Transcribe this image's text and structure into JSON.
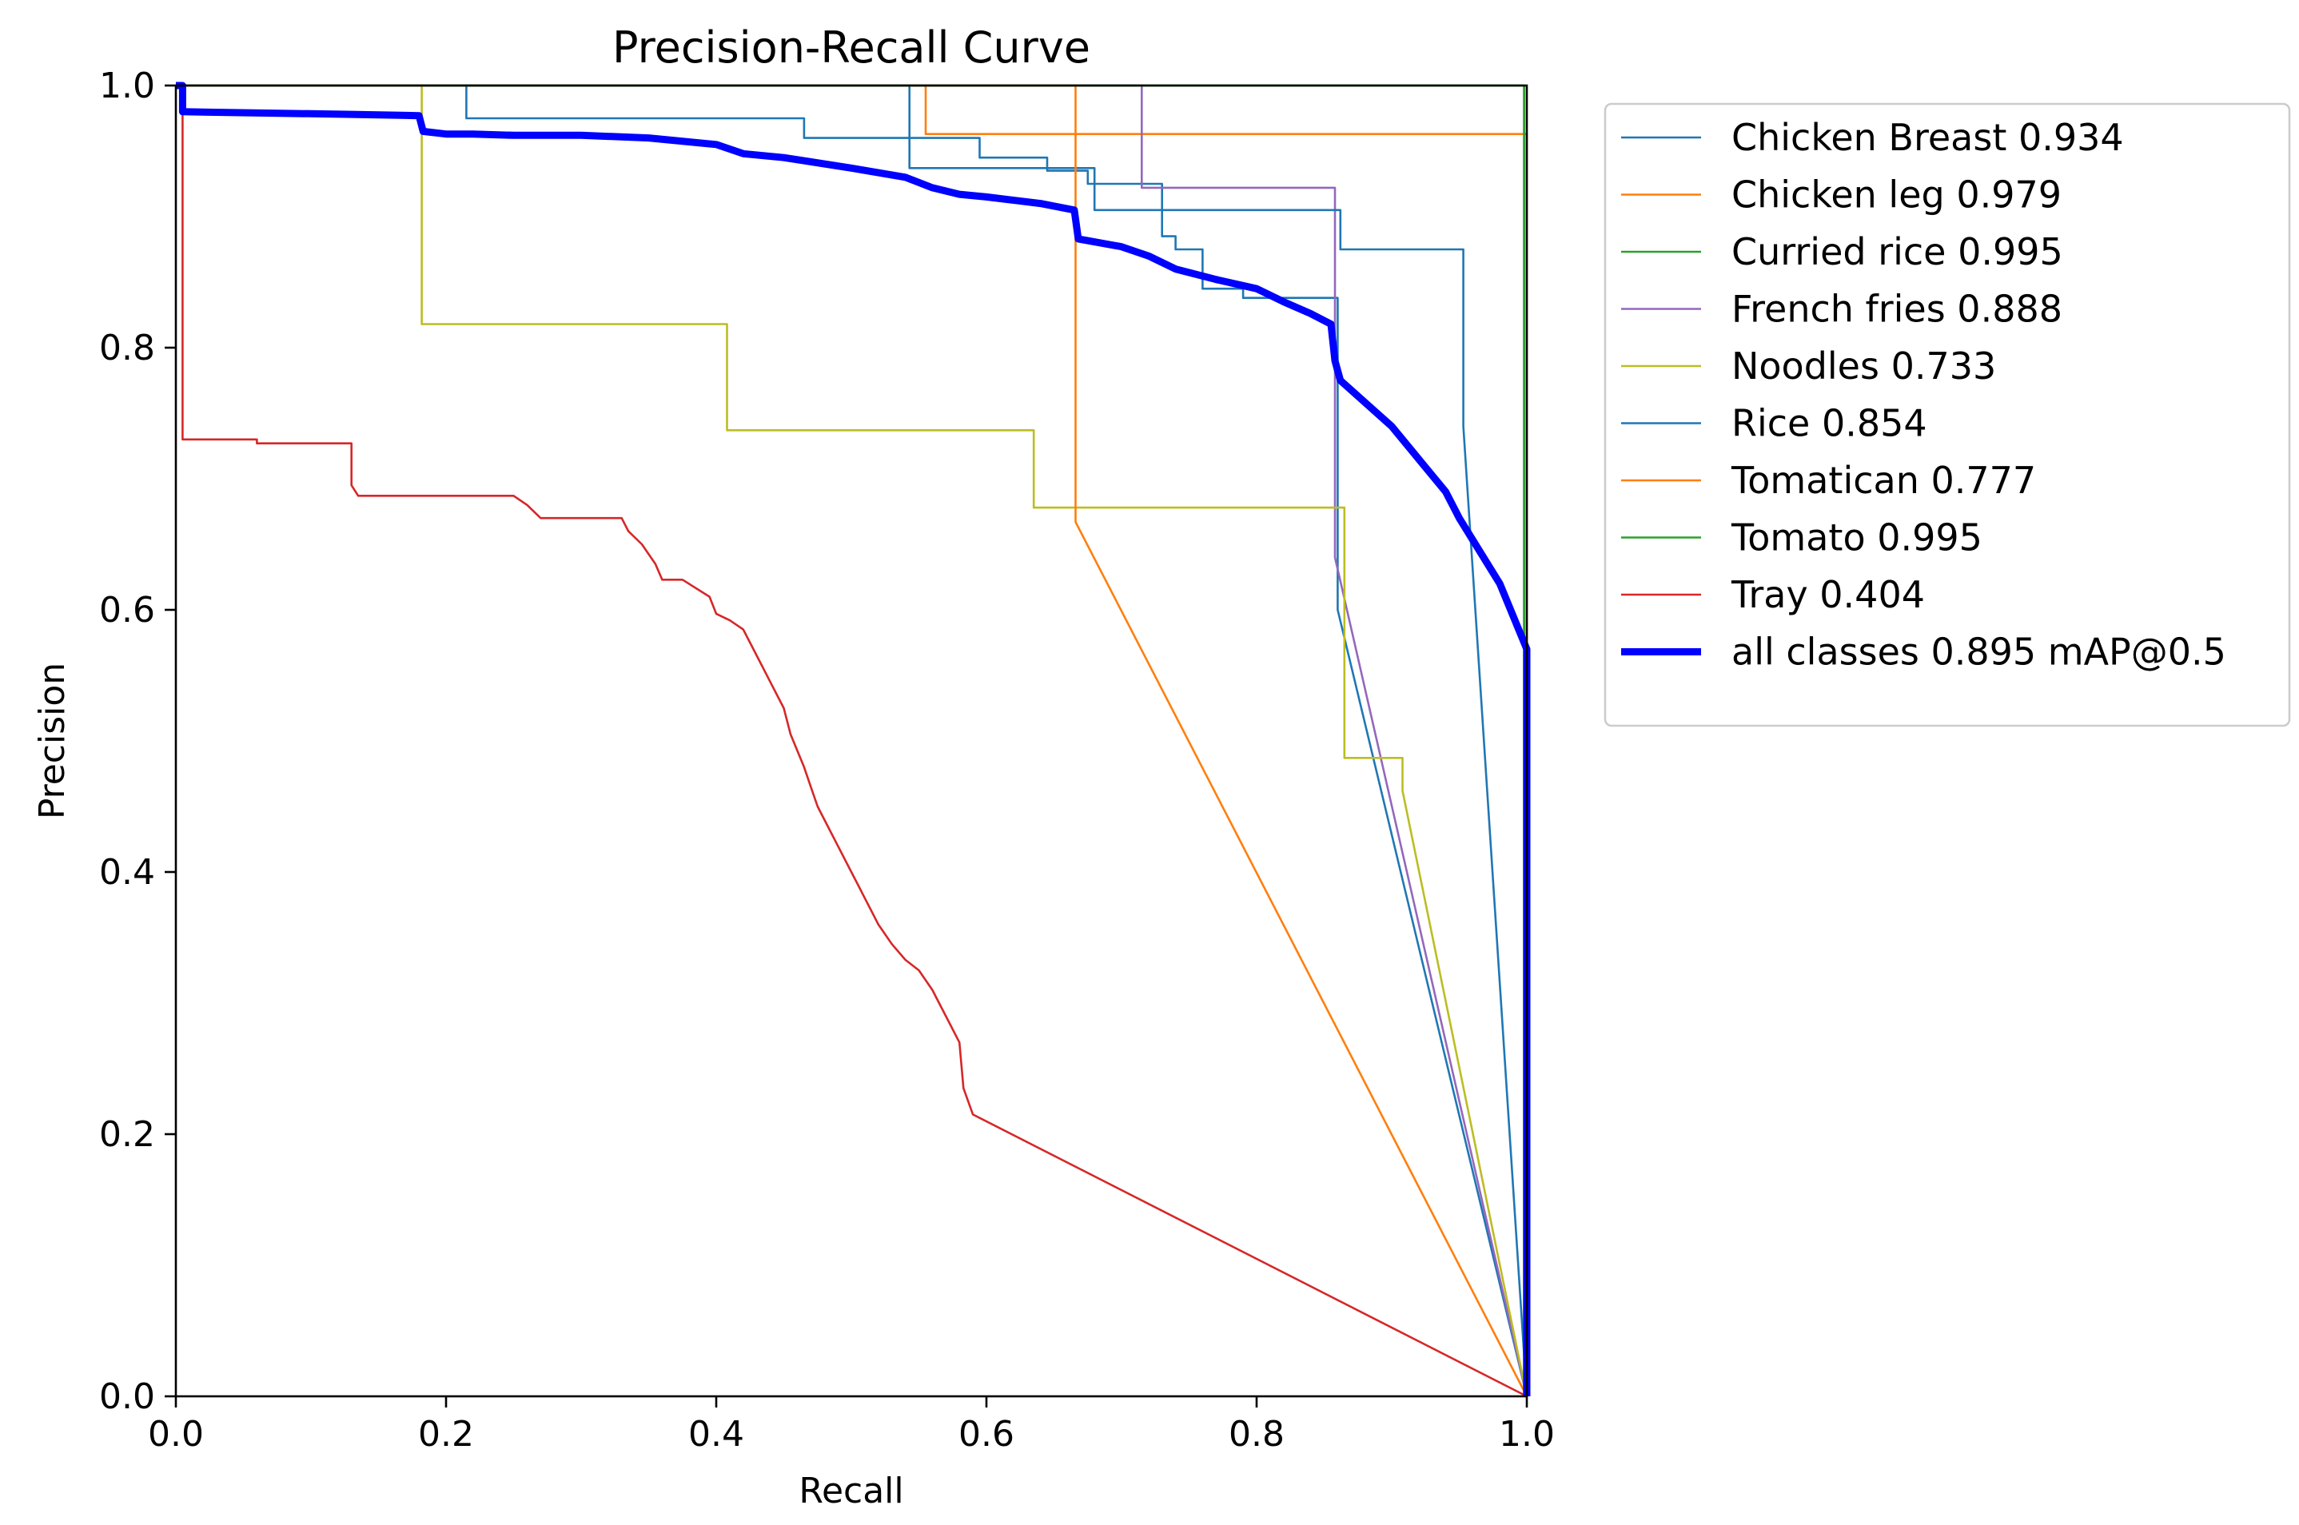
{
  "chart_data": {
    "type": "line",
    "title": "Precision-Recall Curve",
    "xlabel": "Recall",
    "ylabel": "Precision",
    "xlim": [
      0,
      1
    ],
    "ylim": [
      0,
      1
    ],
    "xticks": [
      "0.0",
      "0.2",
      "0.4",
      "0.6",
      "0.8",
      "1.0"
    ],
    "yticks": [
      "0.0",
      "0.2",
      "0.4",
      "0.6",
      "0.8",
      "1.0"
    ],
    "legend_position": "outside-right",
    "series": [
      {
        "name": "Chicken Breast 0.934",
        "color": "#1f77b4",
        "width": 2.6,
        "x": [
          0,
          0.215,
          0.215,
          0.465,
          0.465,
          0.595,
          0.595,
          0.645,
          0.645,
          0.675,
          0.675,
          0.73,
          0.73,
          0.74,
          0.74,
          0.76,
          0.76,
          0.79,
          0.79,
          0.86,
          0.86,
          1.0
        ],
        "y": [
          1.0,
          1.0,
          0.975,
          0.975,
          0.96,
          0.96,
          0.945,
          0.945,
          0.935,
          0.935,
          0.925,
          0.925,
          0.885,
          0.885,
          0.875,
          0.875,
          0.845,
          0.845,
          0.838,
          0.838,
          0.6,
          0
        ]
      },
      {
        "name": "Chicken leg 0.979",
        "color": "#ff7f0e",
        "width": 2.6,
        "x": [
          0,
          0.555,
          0.555,
          1.0,
          1.0
        ],
        "y": [
          1.0,
          1.0,
          0.963,
          0.963,
          0
        ]
      },
      {
        "name": "Curried rice 0.995",
        "color": "#2ca02c",
        "width": 2.6,
        "x": [
          0,
          0.998,
          0.998
        ],
        "y": [
          1.0,
          1.0,
          0
        ]
      },
      {
        "name": "French fries 0.888",
        "color": "#9467bd",
        "width": 2.6,
        "x": [
          0,
          0.715,
          0.715,
          0.858,
          0.858,
          1.0
        ],
        "y": [
          1.0,
          1.0,
          0.922,
          0.922,
          0.64,
          0
        ]
      },
      {
        "name": "Noodles 0.733",
        "color": "#bcbd22",
        "width": 2.6,
        "x": [
          0,
          0.182,
          0.182,
          0.408,
          0.408,
          0.635,
          0.635,
          0.865,
          0.865,
          0.908,
          0.908,
          1.0
        ],
        "y": [
          1.0,
          1.0,
          0.818,
          0.818,
          0.737,
          0.737,
          0.678,
          0.678,
          0.487,
          0.487,
          0.462,
          0
        ]
      },
      {
        "name": "Rice 0.854",
        "color": "#1f77b4",
        "width": 2.6,
        "x": [
          0,
          0.543,
          0.543,
          0.68,
          0.68,
          0.862,
          0.862,
          0.953,
          0.953,
          1.0
        ],
        "y": [
          1.0,
          1.0,
          0.937,
          0.937,
          0.905,
          0.905,
          0.875,
          0.875,
          0.74,
          0
        ]
      },
      {
        "name": "Tomatican 0.777",
        "color": "#ff7f0e",
        "width": 2.6,
        "x": [
          0,
          0.666,
          0.666,
          1.0
        ],
        "y": [
          1.0,
          1.0,
          0.667,
          0
        ]
      },
      {
        "name": "Tomato 0.995",
        "color": "#2ca02c",
        "width": 2.6,
        "x": [
          0,
          0.998,
          0.998
        ],
        "y": [
          1.0,
          1.0,
          0
        ]
      },
      {
        "name": "Tray 0.404",
        "color": "#d62728",
        "width": 2.6,
        "x": [
          0.005,
          0.005,
          0.06,
          0.06,
          0.13,
          0.13,
          0.135,
          0.135,
          0.25,
          0.26,
          0.27,
          0.3,
          0.33,
          0.335,
          0.345,
          0.355,
          0.36,
          0.375,
          0.395,
          0.4,
          0.41,
          0.42,
          0.43,
          0.44,
          0.45,
          0.455,
          0.465,
          0.47,
          0.475,
          0.48,
          0.49,
          0.5,
          0.505,
          0.51,
          0.52,
          0.53,
          0.54,
          0.55,
          0.56,
          0.565,
          0.57,
          0.58,
          0.583,
          0.59,
          1.0
        ],
        "y": [
          1.0,
          0.73,
          0.73,
          0.727,
          0.727,
          0.695,
          0.687,
          0.687,
          0.687,
          0.68,
          0.67,
          0.67,
          0.67,
          0.66,
          0.65,
          0.635,
          0.623,
          0.623,
          0.61,
          0.597,
          0.592,
          0.585,
          0.565,
          0.545,
          0.525,
          0.505,
          0.48,
          0.465,
          0.45,
          0.44,
          0.42,
          0.4,
          0.39,
          0.38,
          0.36,
          0.345,
          0.333,
          0.325,
          0.31,
          0.3,
          0.29,
          0.27,
          0.235,
          0.215,
          0
        ]
      },
      {
        "name": "all classes 0.895 mAP@0.5",
        "color": "#0000ff",
        "width": 9,
        "x": [
          0,
          0.005,
          0.005,
          0.13,
          0.18,
          0.183,
          0.2,
          0.22,
          0.25,
          0.3,
          0.35,
          0.4,
          0.42,
          0.45,
          0.5,
          0.54,
          0.56,
          0.58,
          0.6,
          0.64,
          0.665,
          0.668,
          0.7,
          0.72,
          0.74,
          0.77,
          0.8,
          0.82,
          0.84,
          0.855,
          0.858,
          0.862,
          0.9,
          0.94,
          0.95,
          0.98,
          1.0,
          1.0
        ],
        "y": [
          1.0,
          1.0,
          0.98,
          0.978,
          0.977,
          0.965,
          0.963,
          0.963,
          0.962,
          0.962,
          0.96,
          0.955,
          0.948,
          0.945,
          0.937,
          0.93,
          0.922,
          0.917,
          0.915,
          0.91,
          0.905,
          0.883,
          0.877,
          0.87,
          0.86,
          0.852,
          0.845,
          0.835,
          0.826,
          0.818,
          0.79,
          0.775,
          0.74,
          0.69,
          0.67,
          0.62,
          0.57,
          0
        ]
      }
    ]
  }
}
